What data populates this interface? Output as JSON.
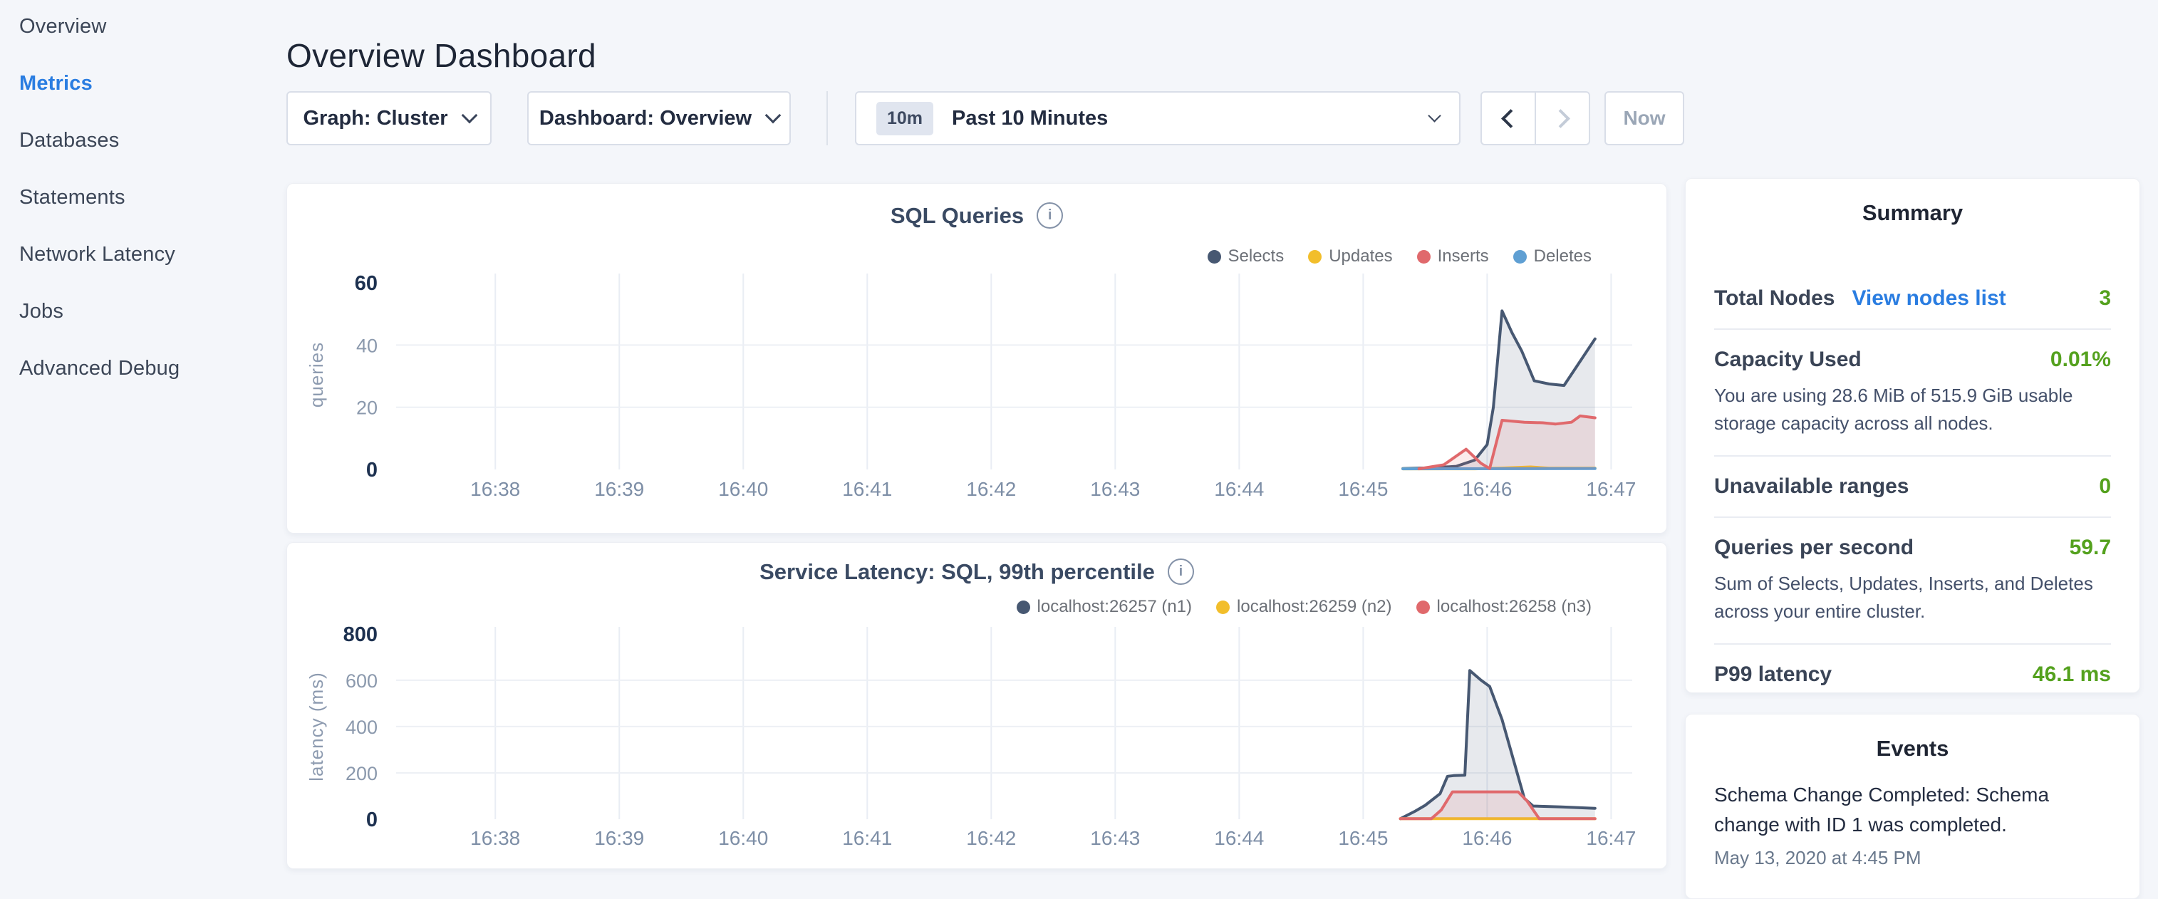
{
  "sidebar": {
    "items": [
      {
        "label": "Overview",
        "active": false
      },
      {
        "label": "Metrics",
        "active": true
      },
      {
        "label": "Databases",
        "active": false
      },
      {
        "label": "Statements",
        "active": false
      },
      {
        "label": "Network Latency",
        "active": false
      },
      {
        "label": "Jobs",
        "active": false
      },
      {
        "label": "Advanced Debug",
        "active": false
      }
    ],
    "active_color": "#2a7de1"
  },
  "header": {
    "title": "Overview Dashboard"
  },
  "controls": {
    "graph_dropdown": {
      "label": "Graph: Cluster"
    },
    "dashboard_dropdown": {
      "label": "Dashboard: Overview"
    },
    "time_selector": {
      "badge": "10m",
      "label": "Past 10 Minutes"
    },
    "now_label": "Now"
  },
  "summary": {
    "title": "Summary",
    "value_color": "#54a11e",
    "link_color": "#2a7de1",
    "rows": [
      {
        "label": "Total Nodes",
        "link": "View nodes list",
        "value": "3"
      },
      {
        "label": "Capacity Used",
        "value": "0.01%",
        "description": "You are using 28.6 MiB of 515.9 GiB usable storage capacity across all nodes."
      },
      {
        "label": "Unavailable ranges",
        "value": "0"
      },
      {
        "label": "Queries per second",
        "value": "59.7",
        "description": "Sum of Selects, Updates, Inserts, and Deletes across your entire cluster."
      },
      {
        "label": "P99 latency",
        "value": "46.1 ms"
      }
    ]
  },
  "events": {
    "title": "Events",
    "items": [
      {
        "message": "Schema Change Completed: Schema change with ID 1 was completed.",
        "timestamp": "May 13, 2020 at 4:45 PM"
      }
    ]
  },
  "chart_data": [
    {
      "type": "area",
      "name": "sql-queries",
      "title": "SQL Queries",
      "xlabel": "",
      "ylabel": "queries",
      "x_unit": "time of day (minutes, May 13 2020)",
      "xlim": [
        37.2,
        47.17
      ],
      "ylim": [
        0,
        63
      ],
      "xticks": [
        {
          "v": 38,
          "label": "16:38"
        },
        {
          "v": 39,
          "label": "16:39"
        },
        {
          "v": 40,
          "label": "16:40"
        },
        {
          "v": 41,
          "label": "16:41"
        },
        {
          "v": 42,
          "label": "16:42"
        },
        {
          "v": 43,
          "label": "16:43"
        },
        {
          "v": 44,
          "label": "16:44"
        },
        {
          "v": 45,
          "label": "16:45"
        },
        {
          "v": 46,
          "label": "16:46"
        },
        {
          "v": 47,
          "label": "16:47"
        }
      ],
      "yticks": [
        {
          "v": 0,
          "strong": true
        },
        {
          "v": 20,
          "strong": false
        },
        {
          "v": 40,
          "strong": false
        },
        {
          "v": 60,
          "strong": true
        }
      ],
      "grid_y": [
        20,
        40
      ],
      "legend_position": "top-right",
      "series": [
        {
          "name": "Selects",
          "color": "#475872",
          "z": 1,
          "points": [
            [
              45.32,
              0.3
            ],
            [
              45.55,
              0.5
            ],
            [
              45.75,
              1
            ],
            [
              45.9,
              3
            ],
            [
              46.0,
              8
            ],
            [
              46.05,
              20
            ],
            [
              46.12,
              51
            ],
            [
              46.2,
              44
            ],
            [
              46.28,
              38
            ],
            [
              46.38,
              28.5
            ],
            [
              46.5,
              27.5
            ],
            [
              46.62,
              27
            ],
            [
              46.72,
              33
            ],
            [
              46.87,
              42
            ]
          ]
        },
        {
          "name": "Updates",
          "color": "#f2be2b",
          "z": 2,
          "points": [
            [
              45.32,
              0.2
            ],
            [
              45.9,
              0.2
            ],
            [
              46.1,
              0.4
            ],
            [
              46.35,
              0.8
            ],
            [
              46.5,
              0.4
            ],
            [
              46.87,
              0.4
            ]
          ]
        },
        {
          "name": "Inserts",
          "color": "#e0696c",
          "z": 4,
          "points": [
            [
              45.45,
              0.2
            ],
            [
              45.65,
              1.5
            ],
            [
              45.83,
              6.5
            ],
            [
              45.95,
              2
            ],
            [
              46.02,
              0.3
            ],
            [
              46.12,
              15.8
            ],
            [
              46.3,
              15.2
            ],
            [
              46.45,
              15
            ],
            [
              46.55,
              14.6
            ],
            [
              46.68,
              15.2
            ],
            [
              46.75,
              17.2
            ],
            [
              46.87,
              16.6
            ]
          ]
        },
        {
          "name": "Deletes",
          "color": "#5f9fd3",
          "z": 3,
          "points": [
            [
              45.32,
              0.2
            ],
            [
              46.87,
              0.3
            ]
          ]
        }
      ]
    },
    {
      "type": "area",
      "name": "service-latency",
      "title": "Service Latency: SQL, 99th percentile",
      "xlabel": "",
      "ylabel": "latency (ms)",
      "x_unit": "time of day (minutes, May 13 2020)",
      "xlim": [
        37.2,
        47.17
      ],
      "ylim": [
        0,
        830
      ],
      "xticks": [
        {
          "v": 38,
          "label": "16:38"
        },
        {
          "v": 39,
          "label": "16:39"
        },
        {
          "v": 40,
          "label": "16:40"
        },
        {
          "v": 41,
          "label": "16:41"
        },
        {
          "v": 42,
          "label": "16:42"
        },
        {
          "v": 43,
          "label": "16:43"
        },
        {
          "v": 44,
          "label": "16:44"
        },
        {
          "v": 45,
          "label": "16:45"
        },
        {
          "v": 46,
          "label": "16:46"
        },
        {
          "v": 47,
          "label": "16:47"
        }
      ],
      "yticks": [
        {
          "v": 0,
          "strong": true
        },
        {
          "v": 200,
          "strong": false
        },
        {
          "v": 400,
          "strong": false
        },
        {
          "v": 600,
          "strong": false
        },
        {
          "v": 800,
          "strong": true
        }
      ],
      "grid_y": [
        200,
        400,
        600
      ],
      "legend_position": "top-right",
      "series": [
        {
          "name": "localhost:26257 (n1)",
          "color": "#475872",
          "z": 1,
          "points": [
            [
              45.3,
              2
            ],
            [
              45.42,
              35
            ],
            [
              45.5,
              60
            ],
            [
              45.62,
              110
            ],
            [
              45.68,
              185
            ],
            [
              45.73,
              188
            ],
            [
              45.82,
              190
            ],
            [
              45.86,
              642
            ],
            [
              45.95,
              600
            ],
            [
              46.02,
              573
            ],
            [
              46.12,
              430
            ],
            [
              46.3,
              90
            ],
            [
              46.37,
              57
            ],
            [
              46.6,
              53
            ],
            [
              46.87,
              47
            ]
          ]
        },
        {
          "name": "localhost:26259 (n2)",
          "color": "#f2be2b",
          "z": 2,
          "points": [
            [
              45.3,
              2
            ],
            [
              46.87,
              2
            ]
          ]
        },
        {
          "name": "localhost:26258 (n3)",
          "color": "#e0696c",
          "z": 3,
          "points": [
            [
              45.3,
              2
            ],
            [
              45.55,
              2
            ],
            [
              45.63,
              40
            ],
            [
              45.72,
              118
            ],
            [
              46.25,
              118
            ],
            [
              46.32,
              80
            ],
            [
              46.42,
              2
            ],
            [
              46.87,
              2
            ]
          ]
        }
      ]
    }
  ]
}
